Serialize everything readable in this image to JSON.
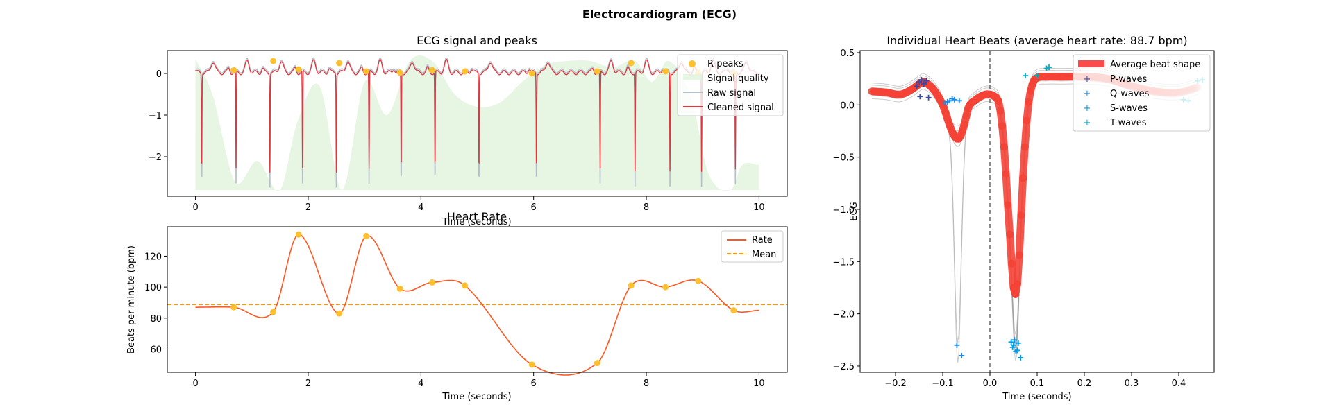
{
  "figure": {
    "title": "Electrocardiogram (ECG)"
  },
  "chart_data": [
    {
      "id": "ecg",
      "type": "line",
      "title": "ECG signal and peaks",
      "xlabel": "Time (seconds)",
      "ylabel": "",
      "xlim": [
        -0.5,
        10.5
      ],
      "ylim": [
        -2.95,
        0.55
      ],
      "xticks": [
        0,
        2,
        4,
        6,
        8,
        10
      ],
      "yticks": [
        -2,
        -1,
        0
      ],
      "legend": [
        "R-peaks",
        "Signal quality",
        "Raw signal",
        "Cleaned signal"
      ],
      "legend_position": "top-right",
      "r_peaks": {
        "x": [
          0.68,
          1.38,
          1.83,
          2.55,
          3.03,
          3.63,
          4.2,
          4.78,
          5.97,
          7.13,
          7.73,
          8.34,
          8.92,
          9.55
        ],
        "y": [
          0.08,
          0.3,
          0.1,
          0.25,
          0.05,
          0.02,
          0.08,
          0.05,
          0.0,
          0.05,
          0.25,
          0.05,
          0.02,
          0.0
        ]
      },
      "signal_quality": {
        "x": [
          0,
          0.3,
          0.7,
          1.1,
          1.5,
          1.8,
          2.2,
          2.6,
          3.0,
          3.4,
          3.8,
          4.2,
          4.6,
          5.0,
          5.4,
          5.8,
          6.2,
          6.6,
          7.0,
          7.4,
          7.8,
          8.1,
          8.4,
          8.8,
          9.1,
          9.5,
          9.7,
          10.0
        ],
        "y": [
          0.35,
          -0.5,
          -2.6,
          -2.1,
          -2.8,
          -1.2,
          -0.3,
          -2.8,
          -0.2,
          -1.0,
          0.3,
          0.3,
          -0.5,
          -0.8,
          -0.7,
          -0.2,
          0.2,
          0.3,
          0.3,
          0.15,
          0.3,
          -0.2,
          0.3,
          -0.6,
          -2.4,
          -2.8,
          -2.2,
          -2.2
        ]
      },
      "signal_quality_base": -2.8,
      "r_spike_times": [
        0.11,
        0.72,
        1.32,
        1.9,
        2.5,
        3.08,
        3.65,
        4.25,
        5.03,
        6.05,
        7.18,
        7.8,
        8.42,
        8.98,
        9.58
      ],
      "r_spike_depth_clean": -2.35,
      "r_spike_depth_raw": -2.75,
      "signal_duration": 10.0
    },
    {
      "id": "rate",
      "type": "line",
      "title": "Heart Rate",
      "xlabel": "Time (seconds)",
      "ylabel": "Beats per minute (bpm)",
      "xlim": [
        -0.5,
        10.5
      ],
      "ylim": [
        45,
        139
      ],
      "xticks": [
        0,
        2,
        4,
        6,
        8,
        10
      ],
      "yticks": [
        60,
        80,
        100,
        120
      ],
      "legend": [
        "Rate",
        "Mean"
      ],
      "legend_position": "top-right",
      "rate_points": {
        "x": [
          0.68,
          1.38,
          1.83,
          2.55,
          3.03,
          3.63,
          4.2,
          4.78,
          5.97,
          7.13,
          7.73,
          8.34,
          8.92,
          9.55
        ],
        "y": [
          87,
          84,
          134,
          83,
          133,
          99,
          103,
          101,
          50,
          51,
          101,
          100,
          104,
          85
        ]
      },
      "rate_start": 87,
      "rate_end": 85,
      "mean": 88.7
    },
    {
      "id": "beats",
      "type": "line",
      "title": "Individual Heart Beats (average heart rate: 88.7 bpm)",
      "xlabel": "Time (seconds)",
      "ylabel": "ECG",
      "xlim": [
        -0.275,
        0.475
      ],
      "ylim": [
        -2.56,
        0.52
      ],
      "xticks": [
        -0.2,
        -0.1,
        0.0,
        0.1,
        0.2,
        0.3,
        0.4
      ],
      "yticks": [
        -2.5,
        -2.0,
        -1.5,
        -1.0,
        -0.5,
        0.0,
        0.5
      ],
      "legend": [
        "Average beat shape",
        "P-waves",
        "Q-waves",
        "S-waves",
        "T-waves"
      ],
      "legend_position": "top-right",
      "vline_x": 0.0,
      "average_beat": {
        "x": [
          -0.25,
          -0.22,
          -0.19,
          -0.165,
          -0.15,
          -0.14,
          -0.12,
          -0.1,
          -0.085,
          -0.075,
          -0.065,
          -0.055,
          -0.045,
          -0.03,
          -0.02,
          -0.01,
          0.0,
          0.01,
          0.02,
          0.03,
          0.04,
          0.05,
          0.055,
          0.06,
          0.07,
          0.08,
          0.09,
          0.1,
          0.12,
          0.15,
          0.2,
          0.25,
          0.3,
          0.35,
          0.4,
          0.44
        ],
        "y": [
          0.13,
          0.12,
          0.1,
          0.15,
          0.2,
          0.22,
          0.15,
          0.0,
          -0.2,
          -0.3,
          -0.32,
          -0.2,
          -0.02,
          0.05,
          0.08,
          0.1,
          0.1,
          0.08,
          0.0,
          -0.4,
          -1.1,
          -1.75,
          -1.8,
          -1.6,
          -0.7,
          -0.05,
          0.2,
          0.26,
          0.27,
          0.27,
          0.27,
          0.25,
          0.18,
          0.13,
          0.12,
          0.17
        ]
      },
      "p_waves": {
        "x": [
          -0.15,
          -0.145,
          -0.14,
          -0.135,
          -0.155,
          -0.13,
          -0.148
        ],
        "y": [
          0.22,
          0.24,
          0.2,
          0.23,
          0.18,
          0.07,
          0.08
        ]
      },
      "q_waves": {
        "x": [
          -0.095,
          -0.085,
          -0.075,
          -0.065,
          -0.08,
          -0.07,
          -0.06,
          -0.09
        ],
        "y": [
          0.02,
          0.04,
          0.05,
          0.04,
          0.06,
          -2.3,
          -2.4,
          0.03
        ]
      },
      "s_waves": {
        "x": [
          0.045,
          0.05,
          0.055,
          0.048,
          0.052,
          0.06,
          0.065,
          0.058
        ],
        "y": [
          -2.27,
          -2.3,
          -2.36,
          -2.32,
          -2.25,
          -2.28,
          -2.42,
          -2.35
        ]
      },
      "t_waves": {
        "x": [
          0.1,
          0.12,
          0.125,
          0.41,
          0.42,
          0.44,
          0.45,
          0.075
        ],
        "y": [
          0.28,
          0.35,
          0.36,
          0.05,
          0.04,
          0.23,
          0.24,
          0.28
        ]
      }
    }
  ]
}
